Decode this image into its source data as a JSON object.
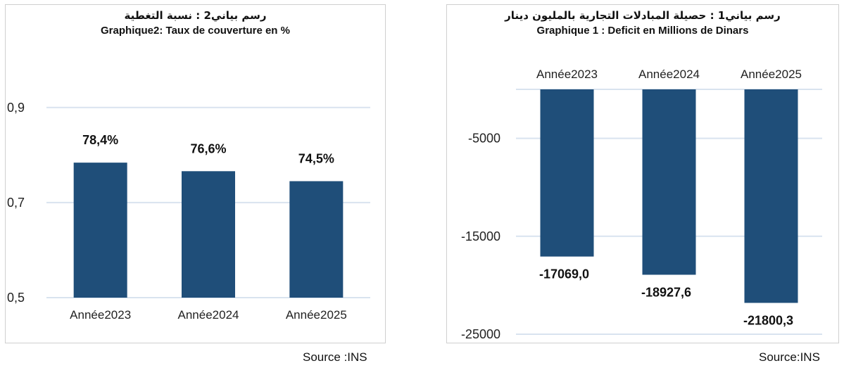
{
  "chart_data": [
    {
      "type": "bar",
      "title_ar": "رسم بياني2 :  نسبة التغطية",
      "title": "Graphique2: Taux de couverture en %",
      "categories": [
        "Année2023",
        "Année2024",
        "Année2025"
      ],
      "values": [
        0.784,
        0.766,
        0.745
      ],
      "data_labels": [
        "78,4%",
        "76,6%",
        "74,5%"
      ],
      "ylim": [
        0.5,
        0.95
      ],
      "yticks": [
        0.5,
        0.7,
        0.9
      ],
      "ytick_labels": [
        "0,5",
        "0,7",
        "0,9"
      ],
      "bar_color": "#1F4E79",
      "grid_color": "#d9e3ef",
      "grid": true,
      "xlabel": "",
      "ylabel": ""
    },
    {
      "type": "bar",
      "title_ar": "رسم بياني1 :  حصيلة المبادلات التجارية بالمليون دينار",
      "title": "Graphique 1 : Deficit en Millions de Dinars",
      "categories": [
        "Année2023",
        "Année2024",
        "Année2025"
      ],
      "values": [
        -17069.0,
        -18927.6,
        -21800.3
      ],
      "data_labels": [
        "-17069,0",
        "-18927,6",
        "-21800,3"
      ],
      "ylim": [
        -25000,
        0
      ],
      "yticks": [
        -5000,
        -15000,
        -25000
      ],
      "ytick_labels": [
        "-5000",
        "-15000",
        "-25000"
      ],
      "bar_color": "#1F4E79",
      "grid_color": "#d9e3ef",
      "grid": true,
      "xlabel": "",
      "ylabel": ""
    }
  ],
  "sources": {
    "left": "Source :INS",
    "right": "Source:INS"
  }
}
